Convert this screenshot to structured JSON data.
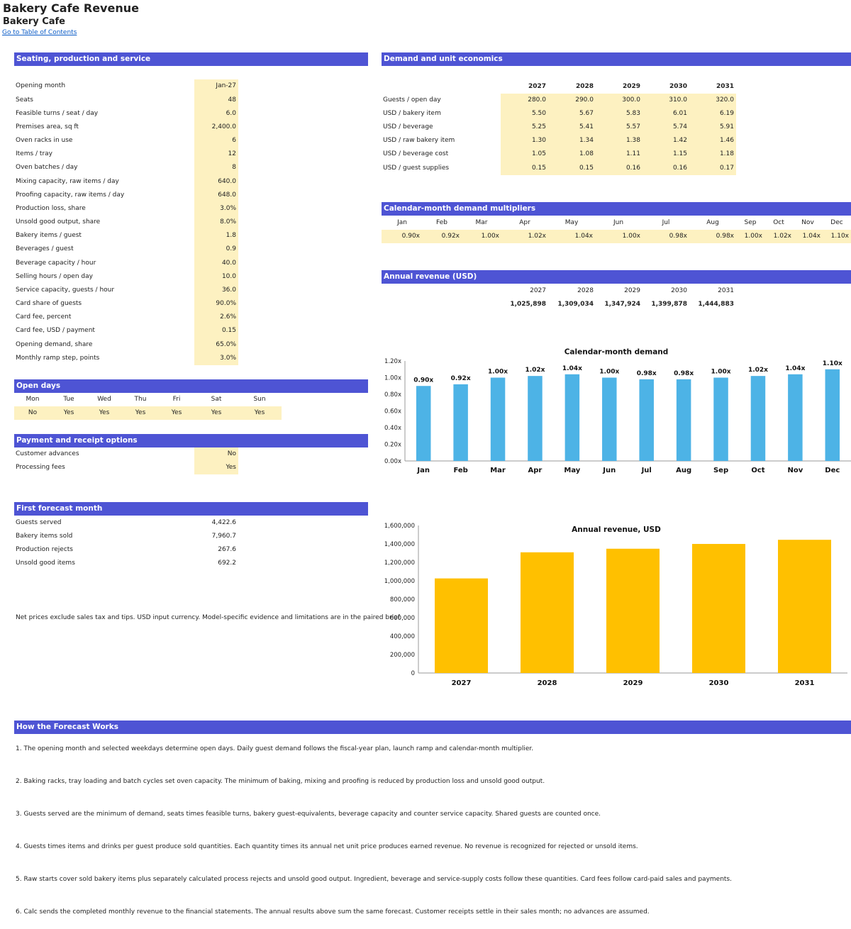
{
  "header": {
    "title": "Bakery Cafe Revenue",
    "subtitle": "Bakery Cafe",
    "toc_link": "Go to Table of Contents"
  },
  "colors": {
    "section_header": "#4e54d4",
    "input_fill": "#fdf1c1",
    "demand_bar": "#4db3e6",
    "revenue_bar": "#ffc000"
  },
  "seating": {
    "title": "Seating, production and service",
    "rows": [
      {
        "label": "Opening month",
        "value": "Jan-27"
      },
      {
        "label": "Seats",
        "value": "48"
      },
      {
        "label": "Feasible turns / seat / day",
        "value": "6.0"
      },
      {
        "label": "Premises area, sq ft",
        "value": "2,400.0"
      },
      {
        "label": "Oven racks in use",
        "value": "6"
      },
      {
        "label": "Items / tray",
        "value": "12"
      },
      {
        "label": "Oven batches / day",
        "value": "8"
      },
      {
        "label": "Mixing capacity, raw items / day",
        "value": "640.0"
      },
      {
        "label": "Proofing capacity, raw items / day",
        "value": "648.0"
      },
      {
        "label": "Production loss, share",
        "value": "3.0%"
      },
      {
        "label": "Unsold good output, share",
        "value": "8.0%"
      },
      {
        "label": "Bakery items / guest",
        "value": "1.8"
      },
      {
        "label": "Beverages / guest",
        "value": "0.9"
      },
      {
        "label": "Beverage capacity / hour",
        "value": "40.0"
      },
      {
        "label": "Selling hours / open day",
        "value": "10.0"
      },
      {
        "label": "Service capacity, guests / hour",
        "value": "36.0"
      },
      {
        "label": "Card share of guests",
        "value": "90.0%"
      },
      {
        "label": "Card fee, percent",
        "value": "2.6%"
      },
      {
        "label": "Card fee, USD / payment",
        "value": "0.15"
      },
      {
        "label": "Opening demand, share",
        "value": "65.0%"
      },
      {
        "label": "Monthly ramp step, points",
        "value": "3.0%"
      }
    ]
  },
  "open_days": {
    "title": "Open days",
    "days": [
      {
        "day": "Mon",
        "value": "No"
      },
      {
        "day": "Tue",
        "value": "Yes"
      },
      {
        "day": "Wed",
        "value": "Yes"
      },
      {
        "day": "Thu",
        "value": "Yes"
      },
      {
        "day": "Fri",
        "value": "Yes"
      },
      {
        "day": "Sat",
        "value": "Yes"
      },
      {
        "day": "Sun",
        "value": "Yes"
      }
    ]
  },
  "payment": {
    "title": "Payment and receipt options",
    "rows": [
      {
        "label": "Customer advances",
        "value": "No"
      },
      {
        "label": "Processing fees",
        "value": "Yes"
      }
    ]
  },
  "first_month": {
    "title": "First forecast month",
    "rows": [
      {
        "label": "Guests served",
        "value": "4,422.6"
      },
      {
        "label": "Bakery items sold",
        "value": "7,960.7"
      },
      {
        "label": "Production rejects",
        "value": "267.6"
      },
      {
        "label": "Unsold good items",
        "value": "692.2"
      }
    ]
  },
  "footnote": "Net prices exclude sales tax and tips. USD input currency. Model-specific evidence and limitations are in the paired brief.",
  "demand": {
    "title": "Demand and unit economics",
    "years": [
      "2027",
      "2028",
      "2029",
      "2030",
      "2031"
    ],
    "rows": [
      {
        "label": "Guests / open day",
        "values": [
          "280.0",
          "290.0",
          "300.0",
          "310.0",
          "320.0"
        ]
      },
      {
        "label": "USD / bakery item",
        "values": [
          "5.50",
          "5.67",
          "5.83",
          "6.01",
          "6.19"
        ]
      },
      {
        "label": "USD / beverage",
        "values": [
          "5.25",
          "5.41",
          "5.57",
          "5.74",
          "5.91"
        ]
      },
      {
        "label": "USD / raw bakery item",
        "values": [
          "1.30",
          "1.34",
          "1.38",
          "1.42",
          "1.46"
        ]
      },
      {
        "label": "USD / beverage cost",
        "values": [
          "1.05",
          "1.08",
          "1.11",
          "1.15",
          "1.18"
        ]
      },
      {
        "label": "USD / guest supplies",
        "values": [
          "0.15",
          "0.15",
          "0.16",
          "0.16",
          "0.17"
        ]
      }
    ]
  },
  "multipliers": {
    "title": "Calendar-month demand multipliers",
    "months": [
      "Jan",
      "Feb",
      "Mar",
      "Apr",
      "May",
      "Jun",
      "Jul",
      "Aug",
      "Sep",
      "Oct",
      "Nov",
      "Dec"
    ],
    "values": [
      "0.90x",
      "0.92x",
      "1.00x",
      "1.02x",
      "1.04x",
      "1.00x",
      "0.98x",
      "0.98x",
      "1.00x",
      "1.02x",
      "1.04x",
      "1.10x"
    ]
  },
  "annual": {
    "title": "Annual revenue (USD)",
    "years": [
      "2027",
      "2028",
      "2029",
      "2030",
      "2031"
    ],
    "values": [
      "1,025,898",
      "1,309,034",
      "1,347,924",
      "1,399,878",
      "1,444,883"
    ]
  },
  "how": {
    "title": "How the Forecast Works",
    "steps": [
      "1. The opening month and selected weekdays determine open days. Daily guest demand follows the fiscal-year plan, launch ramp and calendar-month multiplier.",
      "2. Baking racks, tray loading and batch cycles set oven capacity. The minimum of baking, mixing and proofing is reduced by production loss and unsold good output.",
      "3. Guests served are the minimum of demand, seats times feasible turns, bakery guest-equivalents, beverage capacity and counter service capacity. Shared guests are counted once.",
      "4. Guests times items and drinks per guest produce sold quantities. Each quantity times its annual net unit price produces earned revenue. No revenue is recognized for rejected or unsold items.",
      "5. Raw starts cover sold bakery items plus separately calculated process rejects and unsold good output. Ingredient, beverage and service-supply costs follow these quantities. Card fees follow card-paid sales and payments.",
      "6. Calc sends the completed monthly revenue to the financial statements. The annual results above sum the same forecast. Customer receipts settle in their sales month; no advances are assumed."
    ]
  },
  "chart_data": [
    {
      "type": "bar",
      "title": "Calendar-month demand",
      "categories": [
        "Jan",
        "Feb",
        "Mar",
        "Apr",
        "May",
        "Jun",
        "Jul",
        "Aug",
        "Sep",
        "Oct",
        "Nov",
        "Dec"
      ],
      "values": [
        0.9,
        0.92,
        1.0,
        1.02,
        1.04,
        1.0,
        0.98,
        0.98,
        1.0,
        1.02,
        1.04,
        1.1
      ],
      "data_labels": [
        "0.90x",
        "0.92x",
        "1.00x",
        "1.02x",
        "1.04x",
        "1.00x",
        "0.98x",
        "0.98x",
        "1.00x",
        "1.02x",
        "1.04x",
        "1.10x"
      ],
      "ylim": [
        0,
        1.2
      ],
      "yticks": [
        "0.00x",
        "0.20x",
        "0.40x",
        "0.60x",
        "0.80x",
        "1.00x",
        "1.20x"
      ],
      "grid": false,
      "legend": "none"
    },
    {
      "type": "bar",
      "title": "Annual revenue, USD",
      "categories": [
        "2027",
        "2028",
        "2029",
        "2030",
        "2031"
      ],
      "values": [
        1025898,
        1309034,
        1347924,
        1399878,
        1444883
      ],
      "ylim": [
        0,
        1600000
      ],
      "yticks": [
        "0",
        "200,000",
        "400,000",
        "600,000",
        "800,000",
        "1,000,000",
        "1,200,000",
        "1,400,000",
        "1,600,000"
      ],
      "grid": false,
      "legend": "none"
    }
  ]
}
